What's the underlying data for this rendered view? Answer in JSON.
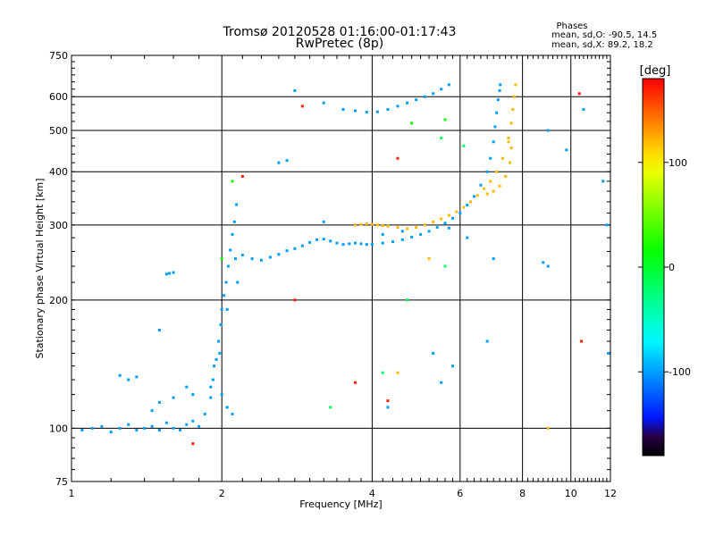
{
  "header": {
    "title": "Tromsø 20120528 01:16:00-01:17:43",
    "subtitle": "RwPretec (8p)"
  },
  "phase_stats": {
    "title": "Phases",
    "o_line": "mean, sd,O: -90.5, 14.5",
    "x_line": "mean, sd,X:  89.2, 18.2"
  },
  "colorbar": {
    "label": "[deg]",
    "ticks": [
      "100",
      "0",
      "-100"
    ],
    "tick_values": [
      100,
      0,
      -100
    ],
    "range": [
      -180,
      180
    ]
  },
  "chart_data": {
    "type": "scatter",
    "xlabel": "Frequency [MHz]",
    "ylabel": "Stationary phase Virtual Height [km]",
    "x_scale": "log",
    "y_scale": "log",
    "xlim": [
      1,
      12
    ],
    "ylim": [
      75,
      750
    ],
    "x_ticks": [
      1,
      2,
      4,
      6,
      8,
      10,
      12
    ],
    "x_tick_labels": [
      "1",
      "2",
      "4",
      "6",
      "8",
      "10",
      "12"
    ],
    "y_ticks": [
      75,
      100,
      200,
      300,
      400,
      500,
      600,
      750
    ],
    "y_tick_labels": [
      "75",
      "100",
      "200",
      "300",
      "400",
      "500",
      "600",
      "750"
    ],
    "grid": true,
    "series": [
      {
        "color_value": -100,
        "points": [
          [
            1.05,
            99
          ],
          [
            1.1,
            100
          ],
          [
            1.15,
            101
          ],
          [
            1.2,
            98
          ],
          [
            1.25,
            100
          ],
          [
            1.3,
            102
          ],
          [
            1.35,
            99
          ],
          [
            1.4,
            100
          ],
          [
            1.45,
            101
          ],
          [
            1.5,
            99
          ],
          [
            1.55,
            103
          ],
          [
            1.6,
            100
          ],
          [
            1.65,
            99
          ],
          [
            1.7,
            102
          ],
          [
            1.75,
            104
          ],
          [
            1.8,
            101
          ],
          [
            1.85,
            108
          ],
          [
            1.9,
            118
          ],
          [
            1.92,
            130
          ],
          [
            1.95,
            145
          ],
          [
            1.97,
            160
          ],
          [
            1.99,
            175
          ],
          [
            2.0,
            190
          ],
          [
            2.02,
            205
          ],
          [
            2.04,
            220
          ],
          [
            2.06,
            240
          ],
          [
            2.08,
            262
          ],
          [
            2.1,
            285
          ],
          [
            2.12,
            305
          ],
          [
            2.14,
            335
          ],
          [
            2.13,
            250
          ],
          [
            2.15,
            220
          ],
          [
            2.05,
            190
          ],
          [
            1.98,
            150
          ],
          [
            1.93,
            140
          ],
          [
            1.9,
            125
          ],
          [
            2.0,
            120
          ],
          [
            2.05,
            112
          ],
          [
            2.1,
            108
          ],
          [
            1.7,
            125
          ],
          [
            1.75,
            120
          ],
          [
            1.6,
            118
          ],
          [
            1.5,
            115
          ],
          [
            1.45,
            110
          ],
          [
            1.3,
            130
          ],
          [
            1.35,
            132
          ],
          [
            1.25,
            133
          ],
          [
            1.5,
            170
          ],
          [
            1.55,
            230
          ],
          [
            1.57,
            231
          ],
          [
            1.6,
            232
          ],
          [
            2.2,
            255
          ],
          [
            2.3,
            250
          ],
          [
            2.4,
            248
          ],
          [
            2.5,
            252
          ],
          [
            2.6,
            256
          ],
          [
            2.7,
            261
          ],
          [
            2.8,
            264
          ],
          [
            2.9,
            268
          ],
          [
            3.0,
            273
          ],
          [
            3.1,
            277
          ],
          [
            3.2,
            278
          ],
          [
            3.3,
            275
          ],
          [
            3.4,
            272
          ],
          [
            3.5,
            270
          ],
          [
            3.6,
            271
          ],
          [
            3.7,
            272
          ],
          [
            3.8,
            271
          ],
          [
            3.9,
            270
          ],
          [
            4.0,
            270
          ],
          [
            4.2,
            272
          ],
          [
            4.4,
            274
          ],
          [
            4.6,
            277
          ],
          [
            4.8,
            281
          ],
          [
            5.0,
            285
          ],
          [
            5.2,
            290
          ],
          [
            5.4,
            296
          ],
          [
            5.6,
            303
          ],
          [
            5.8,
            311
          ],
          [
            6.0,
            320
          ],
          [
            6.2,
            334
          ],
          [
            6.4,
            350
          ],
          [
            6.6,
            372
          ],
          [
            6.8,
            400
          ],
          [
            6.9,
            430
          ],
          [
            7.0,
            470
          ],
          [
            7.05,
            510
          ],
          [
            7.1,
            550
          ],
          [
            7.15,
            590
          ],
          [
            7.2,
            620
          ],
          [
            7.22,
            640
          ],
          [
            3.5,
            560
          ],
          [
            3.7,
            556
          ],
          [
            3.9,
            552
          ],
          [
            4.1,
            553
          ],
          [
            4.3,
            560
          ],
          [
            4.5,
            570
          ],
          [
            4.7,
            580
          ],
          [
            4.9,
            590
          ],
          [
            5.1,
            600
          ],
          [
            5.3,
            610
          ],
          [
            5.5,
            625
          ],
          [
            5.7,
            640
          ],
          [
            2.6,
            420
          ],
          [
            2.7,
            425
          ],
          [
            3.2,
            305
          ],
          [
            2.8,
            620
          ],
          [
            3.2,
            580
          ],
          [
            9.0,
            500
          ],
          [
            9.8,
            450
          ],
          [
            8.8,
            245
          ],
          [
            9.0,
            240
          ],
          [
            10.6,
            560
          ],
          [
            11.6,
            380
          ],
          [
            11.8,
            300
          ],
          [
            11.9,
            150
          ],
          [
            5.3,
            150
          ],
          [
            5.8,
            140
          ],
          [
            6.8,
            160
          ],
          [
            7.0,
            250
          ],
          [
            6.2,
            280
          ],
          [
            5.7,
            295
          ],
          [
            4.6,
            290
          ],
          [
            4.2,
            285
          ],
          [
            5.5,
            128
          ],
          [
            4.3,
            112
          ]
        ]
      },
      {
        "color_value": 120,
        "points": [
          [
            3.7,
            300
          ],
          [
            3.8,
            301
          ],
          [
            3.9,
            302
          ],
          [
            4.0,
            301
          ],
          [
            4.1,
            300
          ],
          [
            4.2,
            299
          ],
          [
            4.3,
            298
          ],
          [
            4.5,
            296
          ],
          [
            4.7,
            294
          ],
          [
            4.9,
            296
          ],
          [
            5.1,
            300
          ],
          [
            5.3,
            305
          ],
          [
            5.5,
            310
          ],
          [
            5.7,
            316
          ],
          [
            5.9,
            322
          ],
          [
            6.1,
            330
          ],
          [
            6.3,
            340
          ],
          [
            6.5,
            352
          ],
          [
            6.7,
            365
          ],
          [
            6.9,
            380
          ],
          [
            7.1,
            400
          ],
          [
            7.3,
            430
          ],
          [
            7.5,
            470
          ],
          [
            7.6,
            520
          ],
          [
            7.65,
            560
          ],
          [
            7.7,
            600
          ],
          [
            7.4,
            390
          ],
          [
            7.2,
            370
          ],
          [
            7.0,
            360
          ],
          [
            6.8,
            355
          ],
          [
            7.6,
            455
          ],
          [
            7.5,
            480
          ],
          [
            7.55,
            420
          ],
          [
            7.75,
            640
          ],
          [
            4.5,
            135
          ],
          [
            5.2,
            250
          ],
          [
            9.0,
            100
          ]
        ]
      },
      {
        "color_value": 20,
        "points": [
          [
            2.0,
            250
          ],
          [
            4.8,
            520
          ],
          [
            5.6,
            530
          ],
          [
            2.1,
            380
          ]
        ]
      },
      {
        "color_value": 170,
        "points": [
          [
            2.8,
            200
          ],
          [
            2.9,
            570
          ],
          [
            4.3,
            116
          ],
          [
            10.5,
            160
          ],
          [
            10.4,
            610
          ],
          [
            2.2,
            390
          ],
          [
            1.75,
            92
          ],
          [
            3.7,
            128
          ],
          [
            4.5,
            430
          ]
        ]
      },
      {
        "color_value": -15,
        "points": [
          [
            5.5,
            480
          ],
          [
            6.1,
            460
          ],
          [
            4.7,
            200
          ],
          [
            3.3,
            112
          ],
          [
            4.2,
            135
          ],
          [
            5.6,
            240
          ]
        ]
      }
    ]
  }
}
